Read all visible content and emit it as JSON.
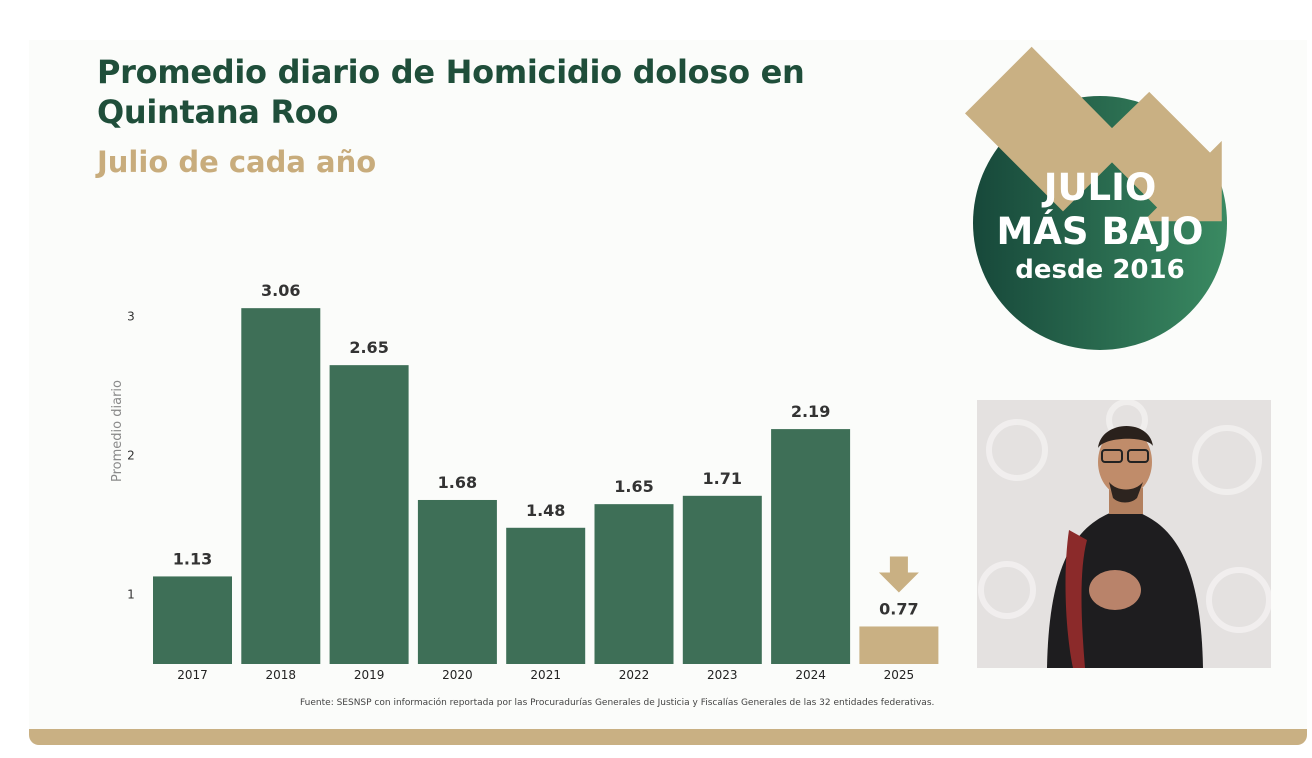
{
  "title": "Promedio diario de Homicidio doloso en Quintana Roo",
  "subtitle": "Julio de cada año",
  "source": "Fuente: SESNSP con información reportada por las Procuradurías Generales de Justicia y Fiscalías Generales de las 32 entidades federativas.",
  "badge": {
    "line1": "JULIO",
    "line2": "MÁS BAJO",
    "line3": "desde 2016"
  },
  "colors": {
    "bar": "#3e6f57",
    "highlight": "#c9b083",
    "title": "#1f4e3a",
    "subtitle": "#c8ac7c"
  },
  "chart_data": {
    "type": "bar",
    "categories": [
      "2017",
      "2018",
      "2019",
      "2020",
      "2021",
      "2022",
      "2023",
      "2024",
      "2025"
    ],
    "values": [
      1.13,
      3.06,
      2.65,
      1.68,
      1.48,
      1.65,
      1.71,
      2.19,
      0.77
    ],
    "value_labels": [
      "1.13",
      "3.06",
      "2.65",
      "1.68",
      "1.48",
      "1.65",
      "1.71",
      "2.19",
      "0.77"
    ],
    "highlight_index": 8,
    "ylabel": "Promedio diario",
    "yticks": [
      "1",
      "2",
      "3"
    ],
    "ylim": [
      0.5,
      3.1
    ],
    "grid": false,
    "legend": "none"
  }
}
